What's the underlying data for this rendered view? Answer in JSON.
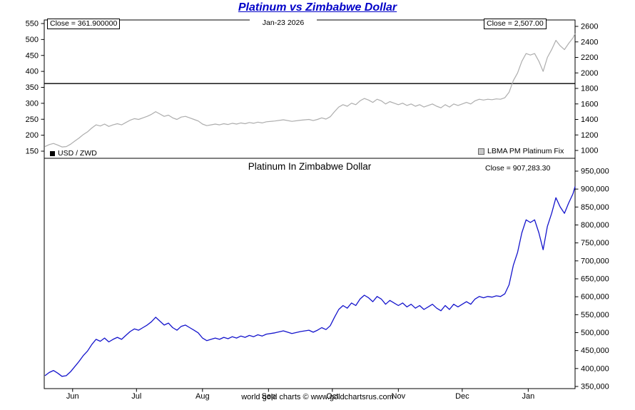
{
  "title": "Platinum vs Zimbabwe Dollar",
  "footer": "world gold charts © www.goldchartsrus.com",
  "colors": {
    "title": "#0202C8",
    "usd_zwd_line": "#000000",
    "platinum_fix_line": "#ADADAD",
    "platinum_zwd_line": "#1414CC",
    "border": "#000000"
  },
  "top_panel": {
    "close_left": "Close = 361.900000",
    "date": "Jan-23  2026",
    "close_right": "Close = 2,507.00",
    "legend_usd_zwd": "USD / ZWD",
    "legend_platinum": "LBMA PM Platinum Fix"
  },
  "bottom_panel": {
    "title": "Platinum In Zimbabwe Dollar",
    "close": "Close = 907,283.30"
  },
  "chart_data": [
    {
      "type": "line",
      "panel": "top",
      "x_unit": "days from 2025-05-19",
      "x_ticks": {
        "labels": [
          "Jun",
          "Jul",
          "Aug",
          "Sep",
          "Oct",
          "Nov",
          "Dec",
          "Jan"
        ],
        "days": [
          13,
          43,
          74,
          105,
          135,
          166,
          196,
          227
        ]
      },
      "left_axis": {
        "name": "USD/ZWD rate",
        "ticks": [
          550,
          500,
          450,
          400,
          350,
          300,
          250,
          200,
          150
        ],
        "range": [
          139,
          561
        ]
      },
      "right_axis": {
        "name": "LBMA PM Platinum Fix (USD)",
        "ticks": [
          2600,
          2400,
          2200,
          2000,
          1800,
          1600,
          1400,
          1200,
          1000
        ],
        "range": [
          930,
          2670
        ]
      },
      "grid": false,
      "legend_position": "bottom-inside",
      "series": [
        {
          "name": "USD / ZWD",
          "axis": "left",
          "style": "constant",
          "value": 361.9,
          "close": 361.9
        },
        {
          "name": "LBMA PM Platinum Fix",
          "axis": "right",
          "close": 2507.0,
          "x": [
            0,
            2,
            4,
            6,
            8,
            10,
            12,
            14,
            16,
            18,
            20,
            22,
            24,
            26,
            28,
            30,
            32,
            34,
            36,
            38,
            40,
            42,
            44,
            46,
            48,
            50,
            52,
            54,
            56,
            58,
            60,
            62,
            64,
            66,
            68,
            70,
            72,
            74,
            76,
            78,
            80,
            82,
            84,
            86,
            88,
            90,
            92,
            94,
            96,
            98,
            100,
            102,
            104,
            108,
            112,
            116,
            120,
            124,
            126,
            128,
            130,
            132,
            134,
            136,
            138,
            140,
            142,
            144,
            146,
            148,
            150,
            152,
            154,
            156,
            158,
            160,
            162,
            164,
            166,
            168,
            170,
            172,
            174,
            176,
            178,
            180,
            182,
            184,
            186,
            188,
            190,
            192,
            194,
            196,
            198,
            200,
            202,
            204,
            206,
            208,
            210,
            212,
            214,
            216,
            218,
            220,
            222,
            224,
            226,
            228,
            230,
            232,
            234,
            236,
            238,
            240,
            242,
            244,
            246,
            248,
            249
          ],
          "values": [
            1050,
            1075,
            1090,
            1070,
            1045,
            1050,
            1080,
            1120,
            1160,
            1205,
            1240,
            1290,
            1330,
            1315,
            1340,
            1310,
            1330,
            1345,
            1330,
            1360,
            1390,
            1410,
            1400,
            1420,
            1440,
            1465,
            1500,
            1470,
            1440,
            1455,
            1420,
            1400,
            1430,
            1440,
            1420,
            1400,
            1380,
            1340,
            1320,
            1330,
            1340,
            1330,
            1345,
            1335,
            1350,
            1340,
            1355,
            1345,
            1360,
            1350,
            1365,
            1355,
            1370,
            1380,
            1395,
            1375,
            1390,
            1400,
            1385,
            1400,
            1420,
            1405,
            1435,
            1500,
            1560,
            1590,
            1570,
            1610,
            1590,
            1640,
            1670,
            1650,
            1620,
            1660,
            1640,
            1600,
            1630,
            1610,
            1590,
            1610,
            1580,
            1600,
            1570,
            1590,
            1560,
            1580,
            1600,
            1570,
            1550,
            1590,
            1560,
            1600,
            1580,
            1600,
            1620,
            1600,
            1640,
            1660,
            1650,
            1660,
            1655,
            1665,
            1660,
            1680,
            1750,
            1900,
            2000,
            2150,
            2250,
            2230,
            2250,
            2150,
            2020,
            2200,
            2300,
            2420,
            2350,
            2300,
            2380,
            2450,
            2507
          ]
        }
      ]
    },
    {
      "type": "line",
      "panel": "bottom",
      "title": "Platinum In Zimbabwe Dollar",
      "x_unit": "days from 2025-05-19 (shares x axis with top panel)",
      "right_axis": {
        "name": "Platinum price in ZWD",
        "ticks": [
          950000,
          900000,
          850000,
          800000,
          750000,
          700000,
          650000,
          600000,
          550000,
          500000,
          450000,
          400000,
          350000
        ],
        "range": [
          340000,
          960000
        ]
      },
      "grid": false,
      "series": [
        {
          "name": "Platinum In Zimbabwe Dollar",
          "axis": "right",
          "close": 907283.3,
          "derived_from": "LBMA PM Platinum Fix × 361.9",
          "x": [
            0,
            2,
            4,
            6,
            8,
            10,
            12,
            14,
            16,
            18,
            20,
            22,
            24,
            26,
            28,
            30,
            32,
            34,
            36,
            38,
            40,
            42,
            44,
            46,
            48,
            50,
            52,
            54,
            56,
            58,
            60,
            62,
            64,
            66,
            68,
            70,
            72,
            74,
            76,
            78,
            80,
            82,
            84,
            86,
            88,
            90,
            92,
            94,
            96,
            98,
            100,
            102,
            104,
            108,
            112,
            116,
            120,
            124,
            126,
            128,
            130,
            132,
            134,
            136,
            138,
            140,
            142,
            144,
            146,
            148,
            150,
            152,
            154,
            156,
            158,
            160,
            162,
            164,
            166,
            168,
            170,
            172,
            174,
            176,
            178,
            180,
            182,
            184,
            186,
            188,
            190,
            192,
            194,
            196,
            198,
            200,
            202,
            204,
            206,
            208,
            210,
            212,
            214,
            216,
            218,
            220,
            222,
            224,
            226,
            228,
            230,
            232,
            234,
            236,
            238,
            240,
            242,
            244,
            246,
            248,
            249
          ],
          "values": [
            380000,
            389000,
            394500,
            387200,
            378200,
            380000,
            390900,
            405300,
            419800,
            436100,
            448800,
            466900,
            481300,
            475900,
            484900,
            474100,
            481300,
            486800,
            481300,
            492200,
            503000,
            510300,
            506700,
            513900,
            521100,
            530200,
            542900,
            532000,
            521100,
            526600,
            513900,
            506700,
            517500,
            521100,
            513900,
            506700,
            499400,
            484900,
            477700,
            481300,
            484900,
            481300,
            486800,
            483100,
            488600,
            484900,
            490400,
            486800,
            492200,
            488600,
            494000,
            490400,
            495800,
            499400,
            504900,
            497600,
            503000,
            506700,
            501200,
            506700,
            513900,
            508500,
            519300,
            542900,
            564600,
            575400,
            568200,
            582700,
            575400,
            593500,
            604400,
            597100,
            586300,
            600800,
            593500,
            579000,
            589900,
            582700,
            575400,
            582700,
            571800,
            579000,
            568200,
            575400,
            564600,
            571800,
            579000,
            568200,
            560900,
            575400,
            564600,
            579000,
            571800,
            579000,
            586300,
            579000,
            593500,
            600800,
            597100,
            600800,
            598900,
            602600,
            600800,
            608000,
            633300,
            687600,
            723800,
            778100,
            814300,
            807000,
            814300,
            778100,
            731000,
            796200,
            832400,
            875800,
            850500,
            832400,
            861300,
            886700,
            907283
          ]
        }
      ]
    }
  ]
}
